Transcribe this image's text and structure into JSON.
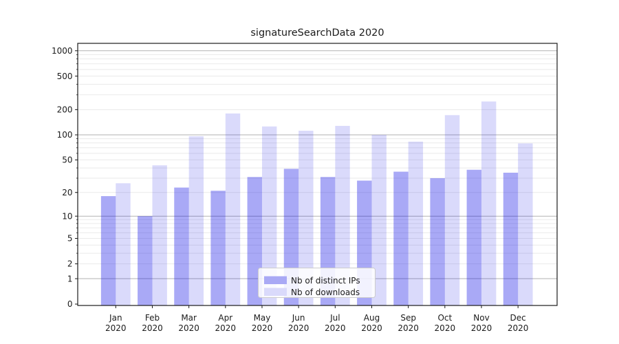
{
  "chart_data": {
    "type": "bar",
    "title": "signatureSearchData 2020",
    "categories": [
      "Jan",
      "Feb",
      "Mar",
      "Apr",
      "May",
      "Jun",
      "Jul",
      "Aug",
      "Sep",
      "Oct",
      "Nov",
      "Dec"
    ],
    "category_sublabel": "2020",
    "series": [
      {
        "name": "Nb of distinct IPs",
        "swatch_color": "#a9a9f5",
        "fill": "rgba(10,10,228,0.35)",
        "values": [
          18,
          10,
          23,
          21,
          31,
          39,
          31,
          28,
          36,
          30,
          38,
          35
        ]
      },
      {
        "name": "Nb of downloads",
        "swatch_color": "#dadafb",
        "fill": "rgba(10,10,228,0.15)",
        "values": [
          26,
          43,
          96,
          180,
          126,
          112,
          128,
          100,
          83,
          172,
          250,
          79
        ]
      }
    ],
    "yscale": "symlog",
    "yticks": [
      0,
      1,
      2,
      5,
      10,
      20,
      50,
      100,
      200,
      500,
      1000
    ],
    "ylim": [
      0,
      1210
    ],
    "xlabel": "",
    "ylabel": "",
    "grid": "on",
    "legend_position": "lower center"
  },
  "colors": {
    "background": "#ffffff",
    "axis": "#1a1a1a",
    "text": "#1a1a1a",
    "decade_gridline": "#b2b2b2",
    "minor_gridline": "#eaeaea",
    "legend_border": "#cccccc",
    "legend_background": "rgba(255,255,255,0.85)"
  }
}
